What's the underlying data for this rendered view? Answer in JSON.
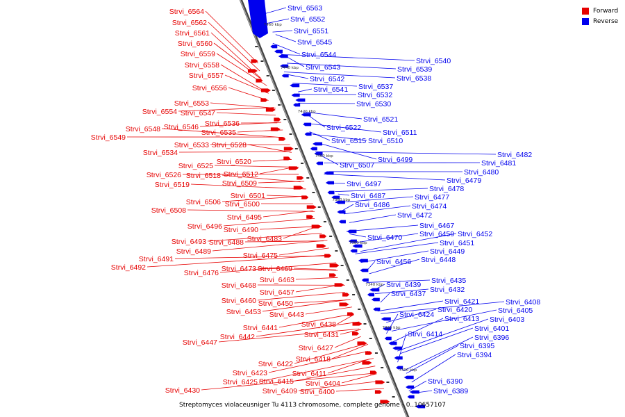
{
  "legend": {
    "forward": {
      "label": "Forward",
      "color": "#e60000"
    },
    "reverse": {
      "label": "Reverse",
      "color": "#0000ee"
    }
  },
  "caption": "Streptomyces violaceusniger Tu 4113 chromosome, complete genome - 0..10657107",
  "ticks": [
    "7460 kbp",
    "7440 kbp",
    "7420 kbp",
    "7400 kbp",
    "7380 kbp",
    "7360 kbp",
    "7340 kbp",
    "7320 kbp",
    "7300 kbp"
  ],
  "forward_labels": [
    "Strvi_6564",
    "Strvi_6562",
    "Strvi_6561",
    "Strvi_6560",
    "Strvi_6559",
    "Strvi_6558",
    "Strvi_6557",
    "Strvi_6556",
    "Strvi_6553",
    "Strvi_6554",
    "Strvi_6547",
    "Strvi_6536",
    "Strvi_6546",
    "Strvi_6535",
    "Strvi_6548",
    "Strvi_6549",
    "Strvi_6533",
    "Strvi_6528",
    "Strvi_6534",
    "Strvi_6520",
    "Strvi_6525",
    "Strvi_6512",
    "Strvi_6526",
    "Strvi_6518",
    "Strvi_6509",
    "Strvi_6519",
    "Strvi_6501",
    "Strvi_6506",
    "Strvi_6500",
    "Strvi_6508",
    "Strvi_6495",
    "Strvi_6496",
    "Strvi_6490",
    "Strvi_6483",
    "Strvi_6493",
    "Strvi_6488",
    "Strvi_6489",
    "Strvi_6475",
    "Strvi_6491",
    "Strvi_6492",
    "Strvi_6476",
    "Strvi_6473",
    "Strvi_6469",
    "Strvi_6463",
    "Strvi_6468",
    "Strvi_6457",
    "Strvi_6460",
    "Strvi_6450",
    "Strvi_6453",
    "Strvi_6443",
    "Strvi_6438",
    "Strvi_6441",
    "Strvi_6442",
    "Strvi_6431",
    "Strvi_6447",
    "Strvi_6427",
    "Strvi_6418",
    "Strvi_6422",
    "Strvi_6423",
    "Strvi_6411",
    "Strvi_6425",
    "Strvi_6415",
    "Strvi_6404",
    "Strvi_6430",
    "Strvi_6409",
    "Strvi_6400"
  ],
  "reverse_labels": [
    "Strvi_6563",
    "Strvi_6552",
    "Strvi_6551",
    "Strvi_6545",
    "Strvi_6544",
    "Strvi_6543",
    "Strvi_6540",
    "Strvi_6539",
    "Strvi_6538",
    "Strvi_6542",
    "Strvi_6537",
    "Strvi_6541",
    "Strvi_6532",
    "Strvi_6530",
    "Strvi_6521",
    "Strvi_6522",
    "Strvi_6511",
    "Strvi_6515",
    "Strvi_6510",
    "Strvi_6499",
    "Strvi_6482",
    "Strvi_6507",
    "Strvi_6481",
    "Strvi_6480",
    "Strvi_6479",
    "Strvi_6497",
    "Strvi_6478",
    "Strvi_6487",
    "Strvi_6477",
    "Strvi_6486",
    "Strvi_6474",
    "Strvi_6472",
    "Strvi_6467",
    "Strvi_6470",
    "Strvi_6459",
    "Strvi_6452",
    "Strvi_6451",
    "Strvi_6449",
    "Strvi_6456",
    "Strvi_6448",
    "Strvi_6435",
    "Strvi_6439",
    "Strvi_6432",
    "Strvi_6437",
    "Strvi_6421",
    "Strvi_6408",
    "Strvi_6420",
    "Strvi_6405",
    "Strvi_6424",
    "Strvi_6413",
    "Strvi_6403",
    "Strvi_6401",
    "Strvi_6414",
    "Strvi_6396",
    "Strvi_6395",
    "Strvi_6394",
    "Strvi_6390",
    "Strvi_6389"
  ]
}
